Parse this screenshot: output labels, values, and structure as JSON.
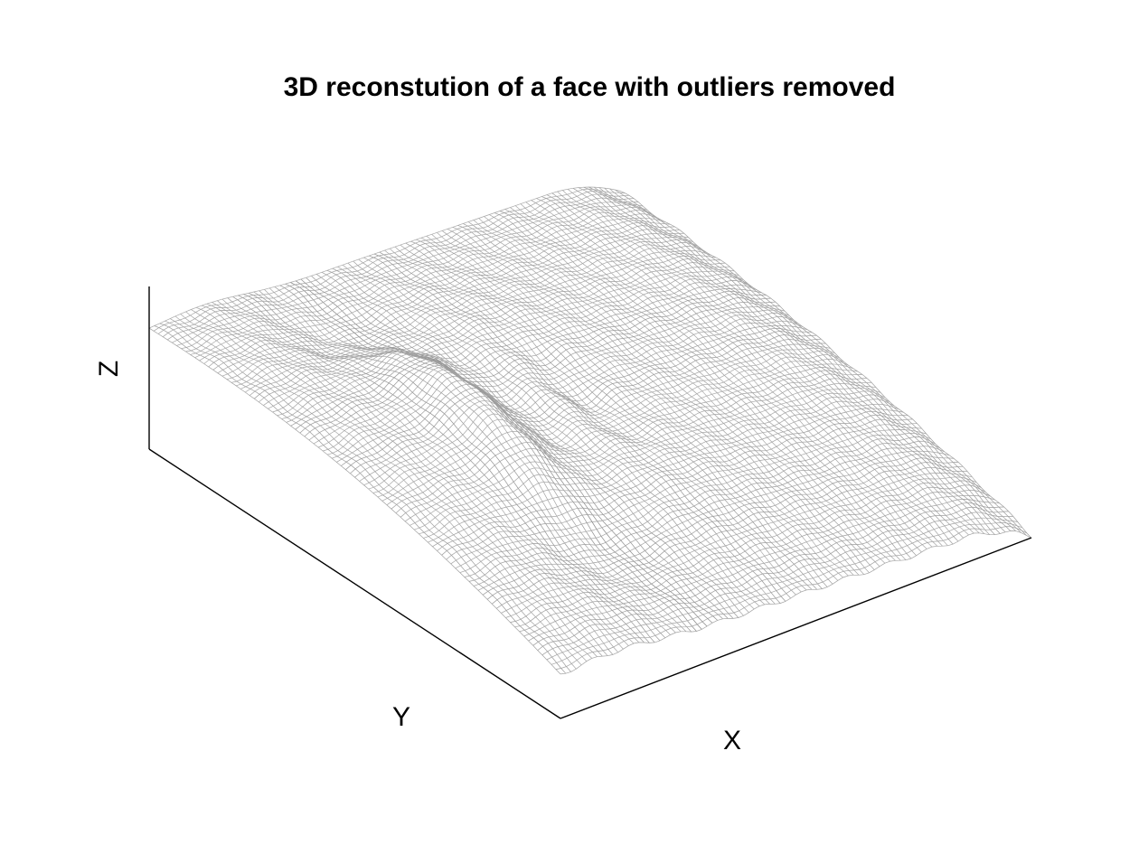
{
  "chart_data": {
    "type": "surface",
    "title": "3D reconstution of a face with outliers removed",
    "xlabel": "X",
    "ylabel": "Y",
    "zlabel": "Z",
    "style": "wireframe mesh",
    "colormap": "grayscale",
    "grid": false,
    "ticks": false
  }
}
